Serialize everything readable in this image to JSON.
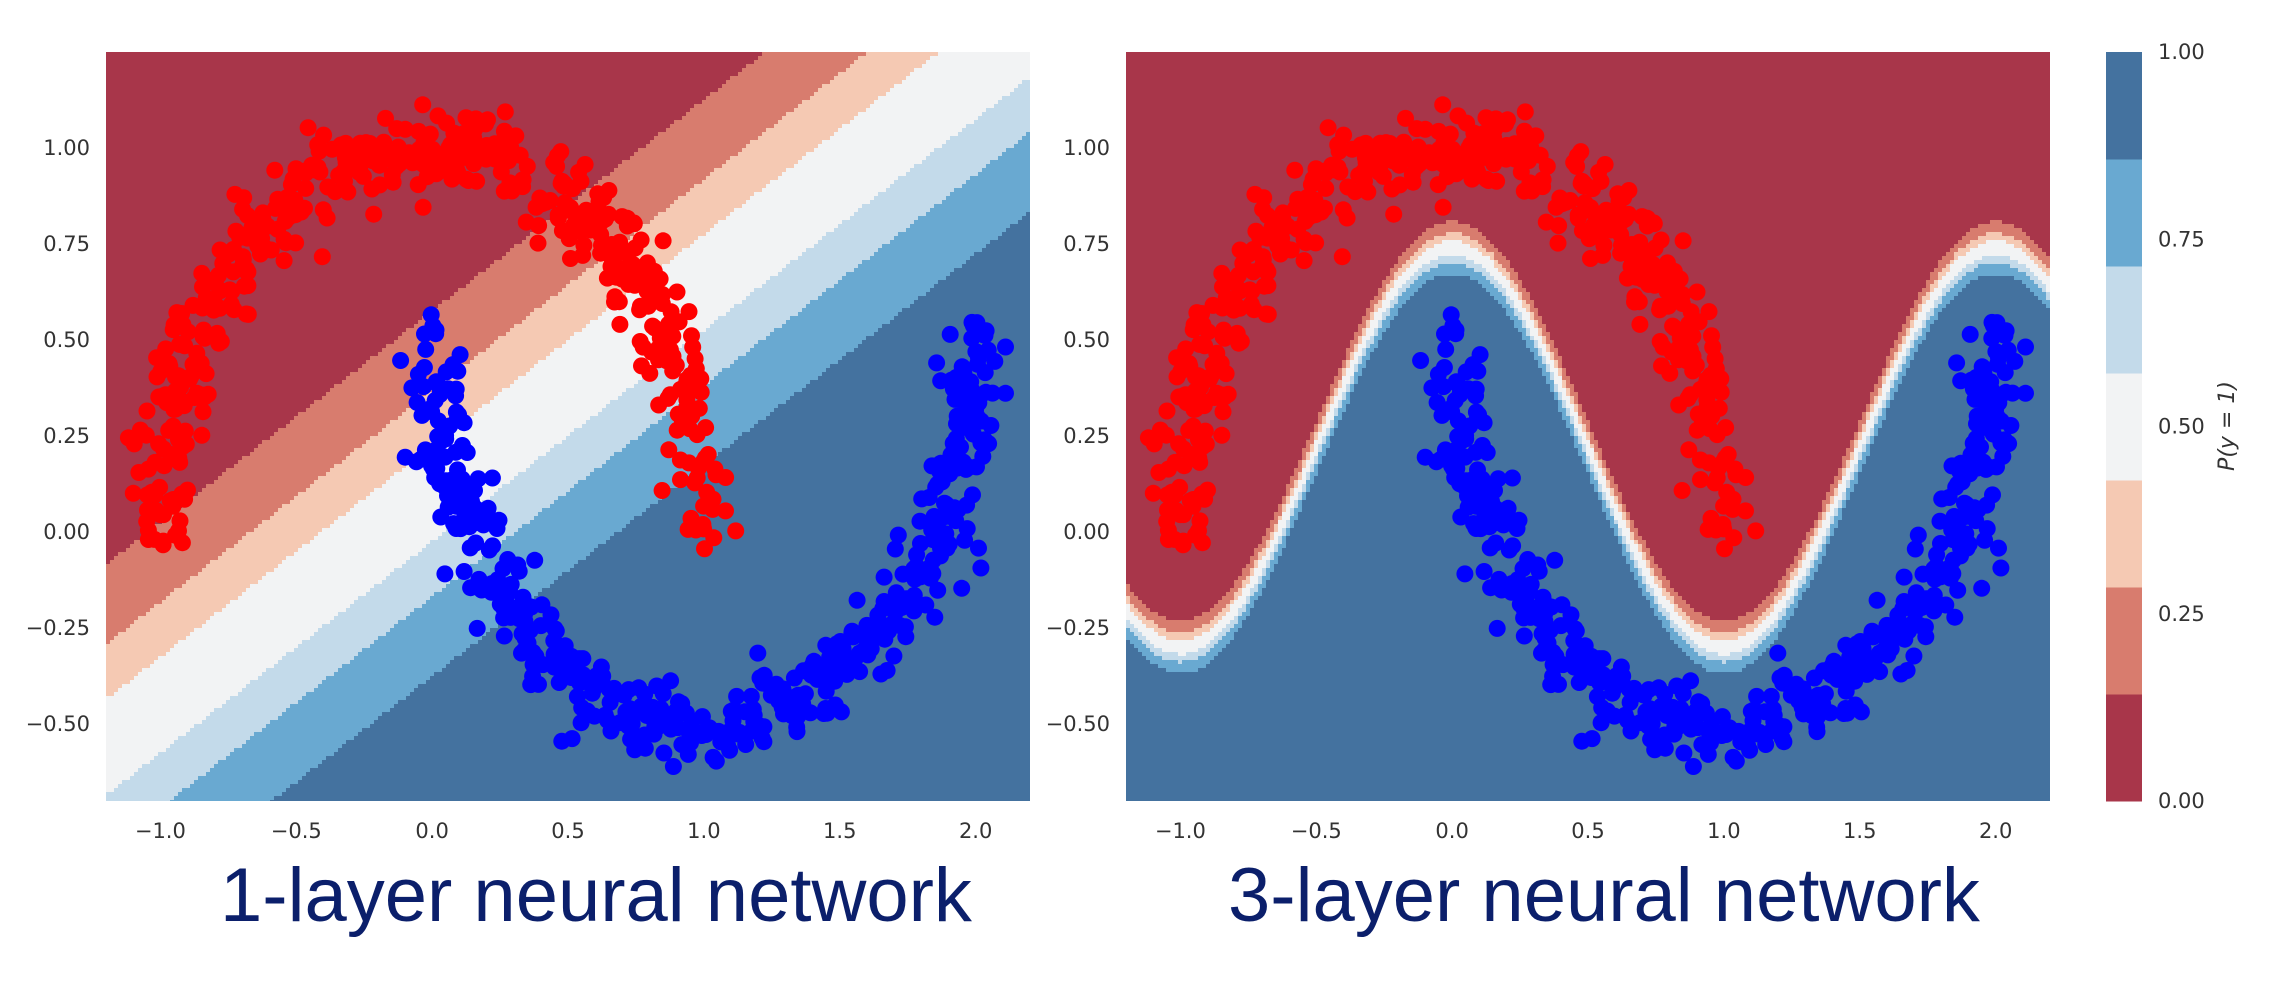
{
  "colors": {
    "levels": [
      "#a8364a",
      "#d87c6e",
      "#f5c9b3",
      "#f2f3f4",
      "#c3daea",
      "#69a9d1",
      "#44729f"
    ],
    "class0": "#ff0000",
    "class1": "#0000ff",
    "caption": "#0b1f6b"
  },
  "captions": {
    "left": "1-layer neural network",
    "right": "3-layer neural network"
  },
  "chart_data": [
    {
      "type": "scatter",
      "title": "",
      "xlabel": "",
      "ylabel": "",
      "xlim": [
        -1.2,
        2.2
      ],
      "ylim": [
        -0.7,
        1.25
      ],
      "x_ticks": [
        "−1.0",
        "−0.5",
        "0.0",
        "0.5",
        "1.0",
        "1.5",
        "2.0"
      ],
      "x_tick_values": [
        -1.0,
        -0.5,
        0.0,
        0.5,
        1.0,
        1.5,
        2.0
      ],
      "y_ticks": [
        "−0.50",
        "−0.25",
        "0.00",
        "0.25",
        "0.50",
        "0.75",
        "1.00"
      ],
      "y_tick_values": [
        -0.5,
        -0.25,
        0.0,
        0.25,
        0.5,
        0.75,
        1.0
      ],
      "grid": false,
      "background": "contourf of P(y = 1); linear decision boundary (parallel diagonal bands)",
      "series": [
        {
          "class": 0,
          "color": "#ff0000",
          "shape": "upper moon",
          "center": [
            0.0,
            0.0
          ],
          "radius": 1.0,
          "angle_range_deg": [
            0,
            180
          ],
          "n_points": 500
        },
        {
          "class": 1,
          "color": "#0000ff",
          "shape": "lower moon",
          "center": [
            1.0,
            0.5
          ],
          "radius": 1.0,
          "angle_range_deg": [
            180,
            360
          ],
          "n_points": 500
        }
      ]
    },
    {
      "type": "scatter",
      "title": "",
      "xlabel": "",
      "ylabel": "",
      "xlim": [
        -1.2,
        2.2
      ],
      "ylim": [
        -0.7,
        1.25
      ],
      "x_ticks": [
        "−1.0",
        "−0.5",
        "0.0",
        "0.5",
        "1.0",
        "1.5",
        "2.0"
      ],
      "x_tick_values": [
        -1.0,
        -0.5,
        0.0,
        0.5,
        1.0,
        1.5,
        2.0
      ],
      "y_ticks": [
        "−0.50",
        "−0.25",
        "0.00",
        "0.25",
        "0.50",
        "0.75",
        "1.00"
      ],
      "y_tick_values": [
        -0.5,
        -0.25,
        0.0,
        0.25,
        0.5,
        0.75,
        1.0
      ],
      "grid": false,
      "background": "contourf of P(y = 1); nonlinear S-shaped decision boundary",
      "series": [
        {
          "class": 0,
          "color": "#ff0000",
          "shape": "upper moon",
          "center": [
            0.0,
            0.0
          ],
          "radius": 1.0,
          "angle_range_deg": [
            0,
            180
          ],
          "n_points": 500
        },
        {
          "class": 1,
          "color": "#0000ff",
          "shape": "lower moon",
          "center": [
            1.0,
            0.5
          ],
          "radius": 1.0,
          "angle_range_deg": [
            180,
            360
          ],
          "n_points": 500
        }
      ]
    }
  ],
  "colorbar": {
    "label": "P(y = 1)",
    "ticks": [
      "0.00",
      "0.25",
      "0.50",
      "0.75",
      "1.00"
    ],
    "tick_values": [
      0.0,
      0.25,
      0.5,
      0.75,
      1.0
    ],
    "level_bounds": [
      0.0,
      0.125,
      0.25,
      0.375,
      0.5,
      0.625,
      0.75,
      0.875,
      1.0
    ]
  }
}
